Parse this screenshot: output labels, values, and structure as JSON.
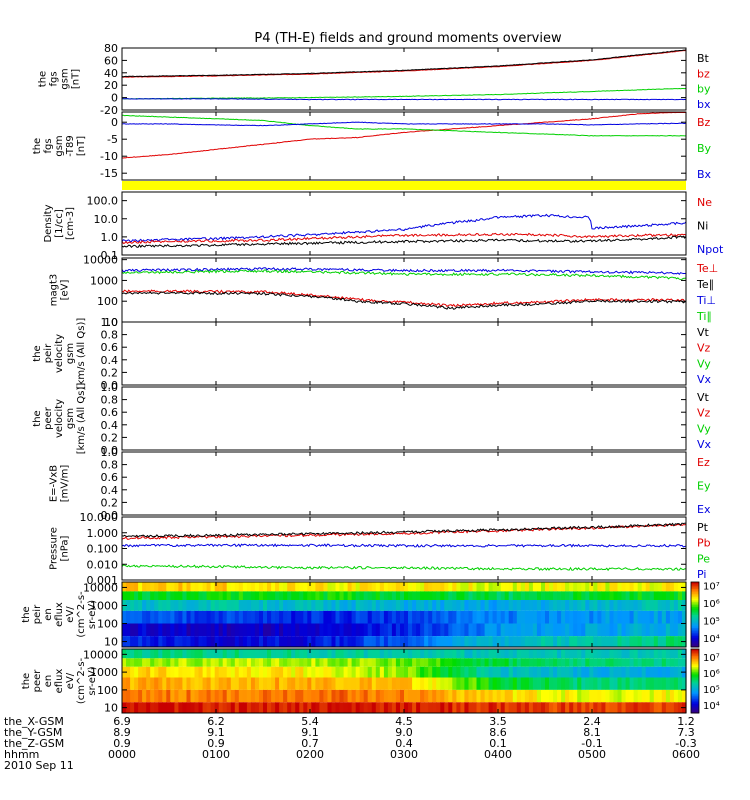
{
  "title": "P4 (TH-E) fields and ground moments overview",
  "date": "2010 Sep 11",
  "x_axis": {
    "times": [
      "0000",
      "0100",
      "0200",
      "0300",
      "0400",
      "0500",
      "0600"
    ],
    "rows": [
      {
        "label": "the_X-GSM",
        "values": [
          "6.9",
          "6.2",
          "5.4",
          "4.5",
          "3.5",
          "2.4",
          "1.2"
        ]
      },
      {
        "label": "the_Y-GSM",
        "values": [
          "8.9",
          "9.1",
          "9.1",
          "9.0",
          "8.6",
          "8.1",
          "7.3"
        ]
      },
      {
        "label": "the_Z-GSM",
        "values": [
          "0.9",
          "0.9",
          "0.7",
          "0.4",
          "0.1",
          "-0.1",
          "-0.3"
        ]
      },
      {
        "label": "hhmm",
        "values": [
          "0000",
          "0100",
          "0200",
          "0300",
          "0400",
          "0500",
          "0600"
        ]
      }
    ]
  },
  "colors": {
    "black": "#000000",
    "red": "#e00000",
    "green": "#00d000",
    "blue": "#0000e0",
    "yellow": "#ffff00"
  },
  "chart_data": [
    {
      "type": "line",
      "ylabel_lines": [
        "the",
        "fgs",
        "gsm",
        "[nT]"
      ],
      "ylim": [
        -20,
        80
      ],
      "ticks": [
        "80",
        "60",
        "40",
        "20",
        "0",
        "-20"
      ],
      "tick_values": [
        80,
        60,
        40,
        20,
        0,
        -20
      ],
      "legend": [
        {
          "text": "Bt",
          "color": "black"
        },
        {
          "text": "bz",
          "color": "red"
        },
        {
          "text": "by",
          "color": "green"
        },
        {
          "text": "bx",
          "color": "blue"
        }
      ],
      "series": [
        {
          "name": "bz",
          "color": "red",
          "x": [
            0,
            1,
            2,
            3,
            4,
            5,
            6
          ],
          "y": [
            33,
            35,
            38,
            43,
            50,
            60,
            76
          ]
        },
        {
          "name": "Bt",
          "color": "black",
          "x": [
            0,
            1,
            2,
            3,
            4,
            5,
            6
          ],
          "y": [
            34,
            36,
            39,
            44,
            51,
            61,
            77
          ]
        },
        {
          "name": "by",
          "color": "green",
          "x": [
            0,
            1,
            2,
            3,
            4,
            5,
            6
          ],
          "y": [
            -2,
            -1,
            0,
            2,
            5,
            10,
            15
          ]
        },
        {
          "name": "bx",
          "color": "blue",
          "x": [
            0,
            1,
            2,
            3,
            4,
            5,
            6
          ],
          "y": [
            -2,
            -2,
            -3,
            -3,
            -3,
            -3,
            -3
          ]
        }
      ]
    },
    {
      "type": "line",
      "ylabel_lines": [
        "the",
        "fgs",
        "gsm",
        "-T89",
        "[nT]"
      ],
      "ylim": [
        -17,
        3
      ],
      "ticks": [
        "0",
        "-5",
        "-10",
        "-15"
      ],
      "tick_values": [
        0,
        -5,
        -10,
        -15
      ],
      "legend": [
        {
          "text": "Bz",
          "color": "red"
        },
        {
          "text": "By",
          "color": "green"
        },
        {
          "text": "Bx",
          "color": "blue"
        }
      ],
      "series": [
        {
          "name": "Bz",
          "color": "red",
          "x": [
            0,
            0.5,
            1,
            1.5,
            2,
            2.5,
            3,
            3.5,
            4,
            4.5,
            5,
            5.5,
            6
          ],
          "y": [
            -10.5,
            -9.5,
            -8,
            -6.5,
            -5,
            -4.5,
            -3,
            -2,
            -1,
            0,
            1,
            2.5,
            3
          ]
        },
        {
          "name": "By",
          "color": "green",
          "x": [
            0,
            0.5,
            1,
            1.5,
            2,
            2.5,
            3,
            3.5,
            4,
            4.5,
            5,
            5.5,
            6
          ],
          "y": [
            2,
            1.5,
            1,
            0.5,
            -1,
            -2,
            -2,
            -2.5,
            -3,
            -3.5,
            -4,
            -4,
            -4
          ]
        },
        {
          "name": "Bx",
          "color": "blue",
          "x": [
            0,
            0.5,
            1,
            1.5,
            2,
            2.5,
            3,
            3.5,
            4,
            4.5,
            5,
            5.5,
            6
          ],
          "y": [
            -0.5,
            -0.5,
            -0.8,
            -1,
            -0.5,
            0,
            -0.5,
            -0.5,
            -0.5,
            -0.5,
            -0.8,
            -0.5,
            -0.3
          ]
        }
      ]
    },
    {
      "type": "line",
      "scale": "log",
      "ylabel_lines": [
        "Density",
        "[1/cc]",
        "[cm-3]"
      ],
      "ylim": [
        0.1,
        300
      ],
      "ticks": [
        "100.0",
        "10.0",
        "1.0",
        "0.1"
      ],
      "tick_values": [
        100,
        10,
        1,
        0.1
      ],
      "legend": [
        {
          "text": "Ne",
          "color": "red"
        },
        {
          "text": "Ni",
          "color": "black"
        },
        {
          "text": "Npot",
          "color": "blue"
        }
      ],
      "series": [
        {
          "name": "Npot",
          "color": "blue",
          "x": [
            0,
            0.5,
            1,
            1.5,
            2,
            2.5,
            3,
            3.25,
            3.5,
            3.75,
            4,
            4.5,
            4.97,
            5.0,
            5.5,
            6
          ],
          "y": [
            0.6,
            0.7,
            0.8,
            1.0,
            1.3,
            1.8,
            2.5,
            4.0,
            6.0,
            8.0,
            12,
            15,
            12,
            3.0,
            4.0,
            6.0
          ]
        },
        {
          "name": "Ne",
          "color": "red",
          "x": [
            0,
            0.5,
            1,
            1.5,
            2,
            2.5,
            3,
            3.5,
            4,
            4.5,
            5,
            5.5,
            6
          ],
          "y": [
            0.5,
            0.55,
            0.6,
            0.65,
            0.8,
            1.0,
            1.2,
            1.3,
            1.4,
            1.3,
            1.0,
            1.2,
            1.3
          ]
        },
        {
          "name": "Ni",
          "color": "black",
          "x": [
            0,
            0.5,
            1,
            1.5,
            2,
            2.5,
            3,
            3.5,
            4,
            4.5,
            5,
            5.5,
            6
          ],
          "y": [
            0.3,
            0.32,
            0.35,
            0.4,
            0.45,
            0.5,
            0.55,
            0.6,
            0.65,
            0.6,
            0.6,
            0.75,
            1.0
          ]
        }
      ]
    },
    {
      "type": "line",
      "scale": "log",
      "ylabel_lines": [
        "magt3",
        "[eV]"
      ],
      "ylim": [
        10,
        12000
      ],
      "ticks": [
        "10000",
        "1000",
        "100",
        "10"
      ],
      "tick_values": [
        10000,
        1000,
        100,
        10
      ],
      "legend": [
        {
          "text": "Te⊥",
          "color": "red"
        },
        {
          "text": "Te∥",
          "color": "black"
        },
        {
          "text": "Ti⊥",
          "color": "blue"
        },
        {
          "text": "Ti∥",
          "color": "green"
        }
      ],
      "series": [
        {
          "name": "Ti⊥",
          "color": "blue",
          "x": [
            0,
            0.5,
            1,
            1.5,
            2,
            2.5,
            3,
            3.5,
            4,
            4.5,
            5,
            5.5,
            6
          ],
          "y": [
            3000,
            3200,
            3400,
            3600,
            3500,
            3200,
            3000,
            3000,
            3000,
            2800,
            2600,
            2400,
            2200
          ]
        },
        {
          "name": "Ti∥",
          "color": "green",
          "x": [
            0,
            0.5,
            1,
            1.5,
            2,
            2.5,
            3,
            3.5,
            4,
            4.5,
            5,
            5.5,
            6
          ],
          "y": [
            2400,
            2500,
            2700,
            2800,
            2600,
            2300,
            2000,
            2000,
            2000,
            1900,
            1700,
            1500,
            1200
          ]
        },
        {
          "name": "Te⊥",
          "color": "red",
          "x": [
            0,
            0.5,
            1,
            1.5,
            2,
            2.5,
            3,
            3.5,
            4,
            4.5,
            5,
            5.5,
            6
          ],
          "y": [
            300,
            300,
            290,
            280,
            200,
            120,
            90,
            60,
            80,
            90,
            120,
            120,
            110
          ]
        },
        {
          "name": "Te∥",
          "color": "black",
          "x": [
            0,
            0.5,
            1,
            1.5,
            2,
            2.5,
            3,
            3.5,
            4,
            4.5,
            5,
            5.5,
            6
          ],
          "y": [
            250,
            250,
            240,
            230,
            170,
            100,
            75,
            45,
            65,
            75,
            100,
            100,
            95
          ]
        }
      ]
    },
    {
      "type": "line",
      "ylabel_lines": [
        "the",
        "peir",
        "velocity",
        "gsm",
        "[km/s (All Qs)]"
      ],
      "ylim": [
        0,
        1
      ],
      "ticks": [
        "1.0",
        "0.8",
        "0.6",
        "0.4",
        "0.2",
        "0.0"
      ],
      "tick_values": [
        1,
        0.8,
        0.6,
        0.4,
        0.2,
        0
      ],
      "legend": [
        {
          "text": "Vt",
          "color": "black"
        },
        {
          "text": "Vz",
          "color": "red"
        },
        {
          "text": "Vy",
          "color": "green"
        },
        {
          "text": "Vx",
          "color": "blue"
        }
      ],
      "series": []
    },
    {
      "type": "line",
      "ylabel_lines": [
        "the",
        "peer",
        "velocity",
        "gsm",
        "[km/s (All Qs)]"
      ],
      "ylim": [
        0,
        1
      ],
      "ticks": [
        "1.0",
        "0.8",
        "0.6",
        "0.4",
        "0.2",
        "0.0"
      ],
      "tick_values": [
        1,
        0.8,
        0.6,
        0.4,
        0.2,
        0
      ],
      "legend": [
        {
          "text": "Vt",
          "color": "black"
        },
        {
          "text": "Vz",
          "color": "red"
        },
        {
          "text": "Vy",
          "color": "green"
        },
        {
          "text": "Vx",
          "color": "blue"
        }
      ],
      "series": []
    },
    {
      "type": "line",
      "ylabel_lines": [
        "E=-VxB",
        "[mV/m]"
      ],
      "ylim": [
        0,
        1
      ],
      "ticks": [
        "1.0",
        "0.8",
        "0.6",
        "0.4",
        "0.2",
        "0.0"
      ],
      "tick_values": [
        1,
        0.8,
        0.6,
        0.4,
        0.2,
        0
      ],
      "legend": [
        {
          "text": "Ez",
          "color": "red"
        },
        {
          "text": "Ey",
          "color": "green"
        },
        {
          "text": "Ex",
          "color": "blue"
        }
      ],
      "series": []
    },
    {
      "type": "line",
      "scale": "log",
      "ylabel_lines": [
        "Pressure",
        "[nPa]"
      ],
      "ylim": [
        0.001,
        10
      ],
      "ticks": [
        "10.000",
        "1.000",
        "0.100",
        "0.010",
        "0.001"
      ],
      "tick_values": [
        10,
        1,
        0.1,
        0.01,
        0.001
      ],
      "legend": [
        {
          "text": "Pt",
          "color": "black"
        },
        {
          "text": "Pb",
          "color": "red"
        },
        {
          "text": "Pe",
          "color": "green"
        },
        {
          "text": "Pi",
          "color": "blue"
        }
      ],
      "series": [
        {
          "name": "Pb",
          "color": "red",
          "x": [
            0,
            1,
            2,
            3,
            4,
            5,
            6
          ],
          "y": [
            0.45,
            0.55,
            0.7,
            0.9,
            1.3,
            2.0,
            3.2
          ]
        },
        {
          "name": "Pt",
          "color": "black",
          "x": [
            0,
            1,
            2,
            3,
            4,
            5,
            6
          ],
          "y": [
            0.6,
            0.7,
            0.85,
            1.1,
            1.5,
            2.2,
            3.5
          ]
        },
        {
          "name": "Pi",
          "color": "blue",
          "x": [
            0,
            1,
            2,
            3,
            4,
            5,
            6
          ],
          "y": [
            0.15,
            0.16,
            0.16,
            0.15,
            0.15,
            0.15,
            0.15
          ]
        },
        {
          "name": "Pe",
          "color": "green",
          "x": [
            0,
            1,
            2,
            3,
            4,
            5,
            6
          ],
          "y": [
            0.008,
            0.007,
            0.006,
            0.006,
            0.005,
            0.005,
            0.005
          ]
        }
      ]
    },
    {
      "type": "heatmap",
      "ylabel_lines": [
        "the",
        "peir",
        "en",
        "eflux",
        "eV/",
        "(cm^2-s-",
        "sr-eV)"
      ],
      "ylim": [
        5,
        20000
      ],
      "ticks": [
        "10000",
        "1000",
        "100",
        "10"
      ],
      "tick_values": [
        10000,
        1000,
        100,
        10
      ],
      "colorbar": {
        "ticks": [
          "10⁷",
          "10⁶",
          "10⁵",
          "10⁴"
        ],
        "tick_values": [
          7,
          6,
          5,
          4
        ],
        "range": [
          3.5,
          7.2
        ]
      },
      "bands": [
        {
          "energy": [
            6000,
            20000
          ],
          "levels": [
            6.4,
            6.4,
            6.3,
            6.3,
            6.2,
            6.2,
            6.3
          ]
        },
        {
          "energy": [
            2000,
            6000
          ],
          "levels": [
            5.6,
            5.7,
            5.7,
            5.6,
            5.5,
            5.6,
            5.7
          ]
        },
        {
          "energy": [
            500,
            2000
          ],
          "levels": [
            5.0,
            5.1,
            5.0,
            4.9,
            4.8,
            5.0,
            5.1
          ]
        },
        {
          "energy": [
            100,
            500
          ],
          "levels": [
            4.4,
            4.3,
            4.2,
            4.3,
            4.6,
            4.7,
            4.8
          ]
        },
        {
          "energy": [
            20,
            100
          ],
          "levels": [
            4.0,
            3.9,
            3.9,
            4.2,
            4.7,
            4.8,
            4.9
          ]
        },
        {
          "energy": [
            5,
            20
          ],
          "levels": [
            4.2,
            4.0,
            4.1,
            4.5,
            5.0,
            5.2,
            5.4
          ]
        }
      ]
    },
    {
      "type": "heatmap",
      "ylabel_lines": [
        "the",
        "peer",
        "en",
        "eflux",
        "eV/",
        "(cm^2-s-",
        "sr-eV)"
      ],
      "ylim": [
        5,
        20000
      ],
      "ticks": [
        "10000",
        "1000",
        "100",
        "10"
      ],
      "tick_values": [
        10000,
        1000,
        100,
        10
      ],
      "colorbar": {
        "ticks": [
          "10⁷",
          "10⁶",
          "10⁵",
          "10⁴"
        ],
        "tick_values": [
          7,
          6,
          5,
          4
        ],
        "range": [
          3.5,
          7.5
        ]
      },
      "bands": [
        {
          "energy": [
            6000,
            20000
          ],
          "levels": [
            5.5,
            5.5,
            5.4,
            5.3,
            5.2,
            5.2,
            5.3
          ]
        },
        {
          "energy": [
            2000,
            6000
          ],
          "levels": [
            6.2,
            6.3,
            6.3,
            6.1,
            5.7,
            5.5,
            5.5
          ]
        },
        {
          "energy": [
            500,
            2000
          ],
          "levels": [
            6.6,
            6.6,
            6.5,
            6.2,
            5.2,
            5.0,
            5.0
          ]
        },
        {
          "energy": [
            100,
            500
          ],
          "levels": [
            6.8,
            6.8,
            6.8,
            6.7,
            5.8,
            5.5,
            5.5
          ]
        },
        {
          "energy": [
            20,
            100
          ],
          "levels": [
            7.0,
            7.0,
            7.1,
            7.0,
            6.6,
            6.4,
            6.5
          ]
        },
        {
          "energy": [
            5,
            20
          ],
          "levels": [
            7.4,
            7.4,
            7.4,
            7.4,
            7.3,
            7.2,
            7.3
          ]
        }
      ]
    }
  ]
}
